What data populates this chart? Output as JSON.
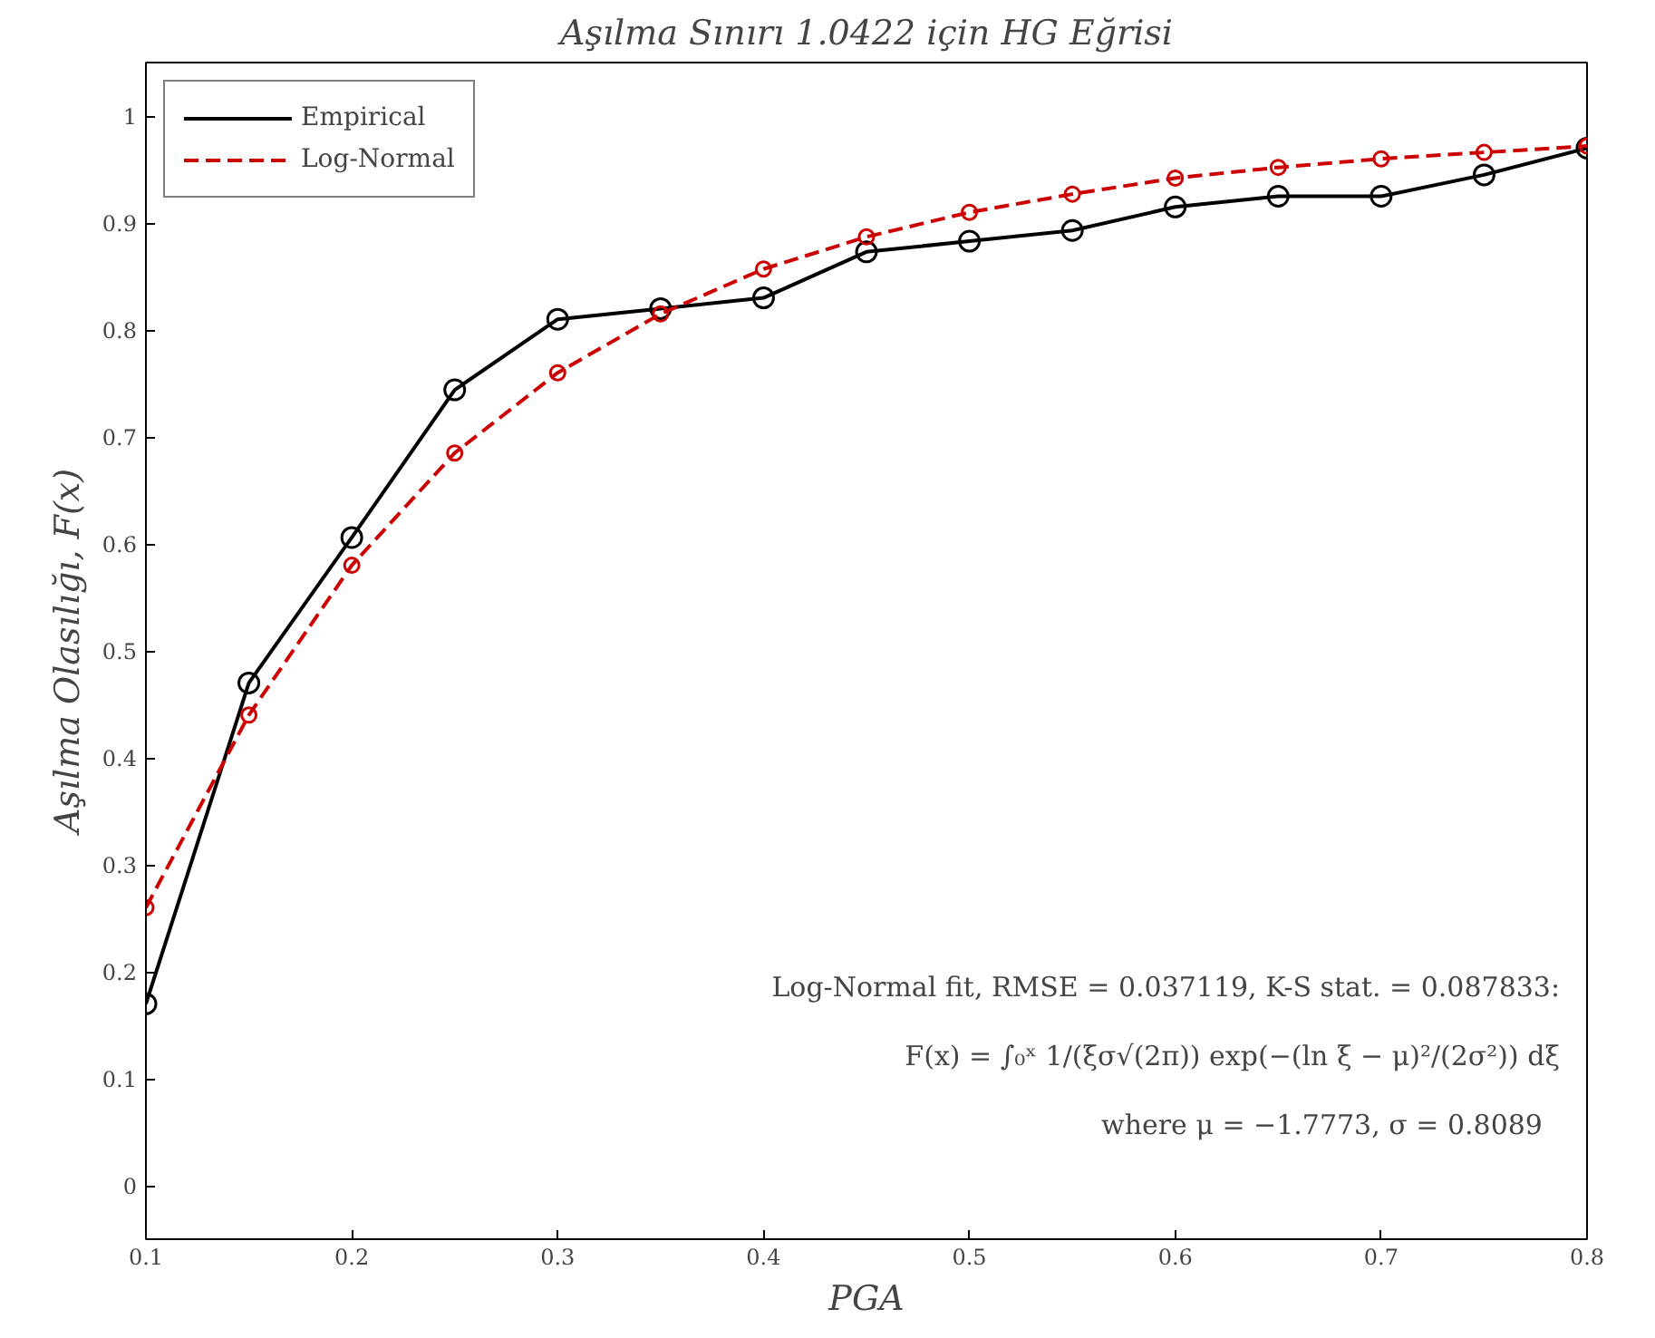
{
  "chart_data": {
    "type": "line",
    "title": "Aşılma Sınırı 1.0422 için HG Eğrisi",
    "xlabel": "PGA",
    "ylabel": "Aşılma Olasılığı, F(x)",
    "x": [
      0.1,
      0.15,
      0.2,
      0.25,
      0.3,
      0.35,
      0.4,
      0.45,
      0.5,
      0.55,
      0.6,
      0.65,
      0.7,
      0.75,
      0.8
    ],
    "series": [
      {
        "name": "Empirical",
        "color": "#000000",
        "line_style": "solid",
        "values": [
          0.17,
          0.47,
          0.606,
          0.744,
          0.81,
          0.82,
          0.83,
          0.873,
          0.883,
          0.893,
          0.915,
          0.925,
          0.925,
          0.945,
          0.97
        ]
      },
      {
        "name": "Log-Normal",
        "color": "#cc0000",
        "line_style": "dashed",
        "values": [
          0.26,
          0.44,
          0.58,
          0.685,
          0.76,
          0.815,
          0.857,
          0.887,
          0.91,
          0.927,
          0.942,
          0.952,
          0.96,
          0.966,
          0.972
        ]
      }
    ],
    "marker": "circle",
    "legend": "top left",
    "grid": false,
    "xlim": [
      0.1,
      0.8
    ],
    "xticks": [
      0.1,
      0.2,
      0.3,
      0.4,
      0.5,
      0.6,
      0.7,
      0.8
    ],
    "ylim": [
      -0.05,
      1.05
    ],
    "yticks": [
      0,
      0.1,
      0.2,
      0.3,
      0.4,
      0.5,
      0.6,
      0.7,
      0.8,
      0.9,
      1
    ],
    "annotations": [
      "Log-Normal fit, RMSE = 0.037119, K-S stat. = 0.087833:",
      "F(x) = ∫₀ˣ 1/(ξσ√(2π)) exp(−(ln ξ − μ)²/(2σ²)) dξ",
      "where   μ = −1.7773, σ = 0.8089"
    ]
  }
}
